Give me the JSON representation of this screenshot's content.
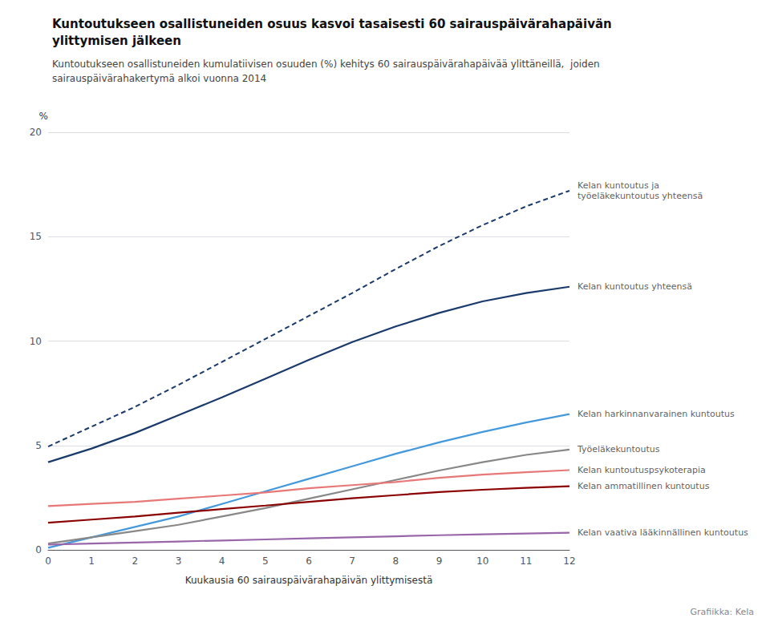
{
  "chart_data": {
    "type": "line",
    "title": "Kuntoutukseen osallistuneiden osuus kasvoi tasaisesti 60 sairauspäivärahapäivän\nylittymisen jälkeen",
    "subtitle": "Kuntoutukseen osallistuneiden kumulatiivisen osuuden (%) kehitys 60 sairauspäivärahapäivää ylittäneillä,  joiden\nsairauspäivärahakertymä alkoi vuonna 2014",
    "xlabel": "Kuukausia 60 sairauspäivärahapäivän ylittymisestä",
    "ylabel": "%",
    "footer": "Grafiikka: Kela",
    "x": [
      0,
      1,
      2,
      3,
      4,
      5,
      6,
      7,
      8,
      9,
      10,
      11,
      12
    ],
    "xlim": [
      0,
      12
    ],
    "xticks": [
      0,
      1,
      2,
      3,
      4,
      5,
      6,
      7,
      8,
      9,
      10,
      11,
      12
    ],
    "ylim": [
      0,
      20
    ],
    "yticks": [
      0,
      5,
      10,
      15,
      20
    ],
    "grid": true,
    "series": [
      {
        "name": "Kelan kuntoutus ja\ntyöeläkekuntoutus yhteensä",
        "color": "#1a3a6b",
        "line_style": "dashed",
        "values": [
          4.95,
          5.9,
          6.85,
          7.9,
          9.0,
          10.1,
          11.2,
          12.3,
          13.45,
          14.55,
          15.55,
          16.45,
          17.2
        ]
      },
      {
        "name": "Kelan kuntoutus yhteensä",
        "color": "#1a3a6b",
        "line_style": "solid",
        "values": [
          4.2,
          4.85,
          5.6,
          6.45,
          7.3,
          8.2,
          9.1,
          9.95,
          10.7,
          11.35,
          11.9,
          12.3,
          12.6
        ]
      },
      {
        "name": "Kelan harkinnanvarainen kuntoutus",
        "color": "#4499dd",
        "line_style": "solid",
        "values": [
          0.1,
          0.6,
          1.1,
          1.6,
          2.2,
          2.8,
          3.4,
          4.0,
          4.6,
          5.15,
          5.65,
          6.1,
          6.5
        ]
      },
      {
        "name": "Työeläkekuntoutus",
        "color": "#888888",
        "line_style": "solid",
        "values": [
          0.3,
          0.6,
          0.9,
          1.2,
          1.6,
          2.0,
          2.45,
          2.9,
          3.35,
          3.8,
          4.2,
          4.55,
          4.8
        ]
      },
      {
        "name": "Kelan kuntoutuspsykoterapia",
        "color": "#e87878",
        "line_style": "solid",
        "values": [
          2.1,
          2.2,
          2.3,
          2.45,
          2.6,
          2.75,
          2.95,
          3.1,
          3.25,
          3.45,
          3.6,
          3.72,
          3.82
        ]
      },
      {
        "name": "Kelan ammatillinen kuntoutus",
        "color": "#8b0000",
        "line_style": "solid",
        "values": [
          1.3,
          1.45,
          1.6,
          1.78,
          1.95,
          2.12,
          2.3,
          2.47,
          2.62,
          2.77,
          2.88,
          2.97,
          3.05
        ]
      },
      {
        "name": "Kelan vaativa lääkinnällinen kuntoutus",
        "color": "#9966aa",
        "line_style": "solid",
        "values": [
          0.25,
          0.3,
          0.35,
          0.4,
          0.45,
          0.5,
          0.55,
          0.6,
          0.65,
          0.7,
          0.74,
          0.78,
          0.82
        ]
      }
    ],
    "annotations": [
      {
        "text": "Kelan kuntoutus ja\ntyöeläkekuntoutus yhteensä",
        "x": 12,
        "y": 17.2
      },
      {
        "text": "Kelan kuntoutus yhteensä",
        "x": 12,
        "y": 12.6
      },
      {
        "text": "Kelan harkinnanvarainen kuntoutus",
        "x": 12,
        "y": 6.5
      },
      {
        "text": "Työeläkekuntoutus",
        "x": 12,
        "y": 4.8
      },
      {
        "text": "Kelan kuntoutuspsykoterapia",
        "x": 12,
        "y": 3.82
      },
      {
        "text": "Kelan ammatillinen kuntoutus",
        "x": 12,
        "y": 3.05
      },
      {
        "text": "Kelan vaativa lääkinnällinen kuntoutus",
        "x": 12,
        "y": 0.82
      }
    ]
  }
}
